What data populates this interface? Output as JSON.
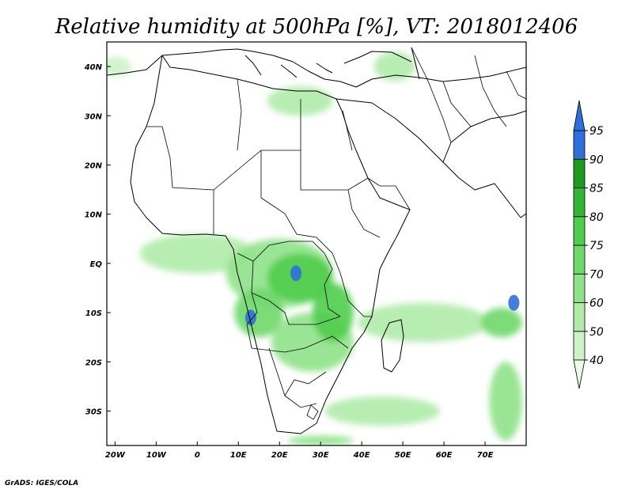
{
  "title": "Relative humidity at 500hPa [%], VT: 2018012406",
  "credit": "GrADS: IGES/COLA",
  "chart_data": {
    "type": "heatmap",
    "title": "Relative humidity at 500hPa [%], VT: 2018012406",
    "variable": "Relative humidity",
    "level": "500hPa",
    "units": "%",
    "valid_time": "2018012406",
    "lon_range": [
      -22,
      80
    ],
    "lat_range": [
      -37,
      45
    ],
    "x_ticks": [
      "20W",
      "10W",
      "0",
      "10E",
      "20E",
      "30E",
      "40E",
      "50E",
      "60E",
      "70E"
    ],
    "x_tick_values": [
      -20,
      -10,
      0,
      10,
      20,
      30,
      40,
      50,
      60,
      70
    ],
    "y_ticks": [
      "40N",
      "30N",
      "20N",
      "10N",
      "EQ",
      "10S",
      "20S",
      "30S"
    ],
    "y_tick_values": [
      40,
      30,
      20,
      10,
      0,
      -10,
      -20,
      -30
    ],
    "colorbar": {
      "levels": [
        "40",
        "50",
        "60",
        "70",
        "75",
        "80",
        "85",
        "90",
        "95"
      ],
      "colors": [
        "#ecfaea",
        "#cdf2c8",
        "#b0ebaa",
        "#8fe28a",
        "#6fd86a",
        "#4fcd4d",
        "#33b633",
        "#1e9a1e",
        "#2f6fd9"
      ],
      "extend": "both"
    },
    "humid_regions": [
      {
        "lon": -20,
        "lat": 40,
        "rx": 4,
        "ry": 2,
        "level": 1
      },
      {
        "lon": 25,
        "lat": 33,
        "rx": 8,
        "ry": 3,
        "level": 2
      },
      {
        "lon": 48,
        "lat": 40,
        "rx": 5,
        "ry": 3,
        "level": 2
      },
      {
        "lon": 0,
        "lat": 2,
        "rx": 14,
        "ry": 4,
        "level": 2
      },
      {
        "lon": 20,
        "lat": -2,
        "rx": 13,
        "ry": 7,
        "level": 3
      },
      {
        "lon": 25,
        "lat": -3,
        "rx": 8,
        "ry": 5,
        "level": 5
      },
      {
        "lon": 15,
        "lat": -10,
        "rx": 6,
        "ry": 5,
        "level": 4
      },
      {
        "lon": 28,
        "lat": -16,
        "rx": 10,
        "ry": 6,
        "level": 3
      },
      {
        "lon": 33,
        "lat": -10,
        "rx": 5,
        "ry": 6,
        "level": 5
      },
      {
        "lon": 55,
        "lat": -12,
        "rx": 16,
        "ry": 4,
        "level": 2
      },
      {
        "lon": 74,
        "lat": -12,
        "rx": 5,
        "ry": 3,
        "level": 4
      },
      {
        "lon": 45,
        "lat": -30,
        "rx": 14,
        "ry": 3,
        "level": 2
      },
      {
        "lon": 75,
        "lat": -28,
        "rx": 4,
        "ry": 8,
        "level": 3
      },
      {
        "lon": 30,
        "lat": -36,
        "rx": 8,
        "ry": 1,
        "level": 3
      }
    ],
    "peak_points": [
      {
        "lon": 13,
        "lat": -11,
        "level": 8
      },
      {
        "lon": 24,
        "lat": -2,
        "level": 8
      },
      {
        "lon": 77,
        "lat": -8,
        "level": 8
      }
    ]
  }
}
